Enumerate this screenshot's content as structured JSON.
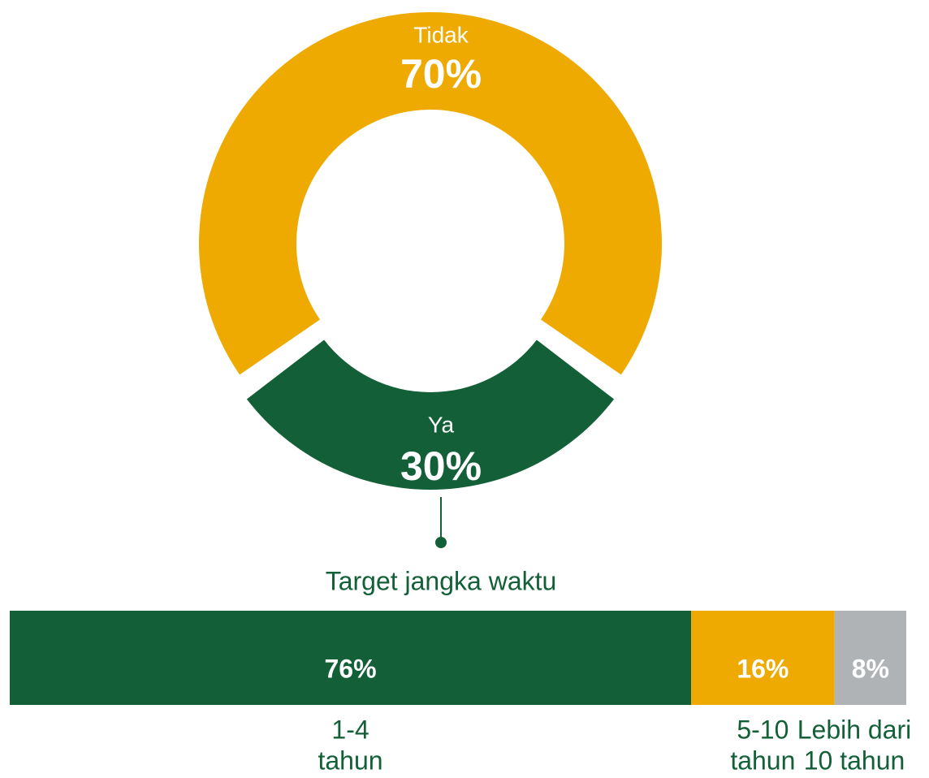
{
  "chart_data": [
    {
      "type": "donut",
      "categories": [
        "Tidak",
        "Ya"
      ],
      "values": [
        70,
        30
      ],
      "value_labels": [
        "70%",
        "30%"
      ],
      "colors": [
        "#EEAA00",
        "#136038"
      ]
    },
    {
      "type": "stacked_bar",
      "title": "Target jangka waktu",
      "categories": [
        [
          "1-4",
          "tahun"
        ],
        [
          "5-10",
          "tahun"
        ],
        [
          "Lebih dari",
          "10 tahun"
        ]
      ],
      "values": [
        76,
        16,
        8
      ],
      "value_labels": [
        "76%",
        "16%",
        "8%"
      ],
      "colors": [
        "#136038",
        "#EEAA00",
        "#B0B3B5"
      ],
      "xlim": [
        0,
        100
      ]
    }
  ]
}
